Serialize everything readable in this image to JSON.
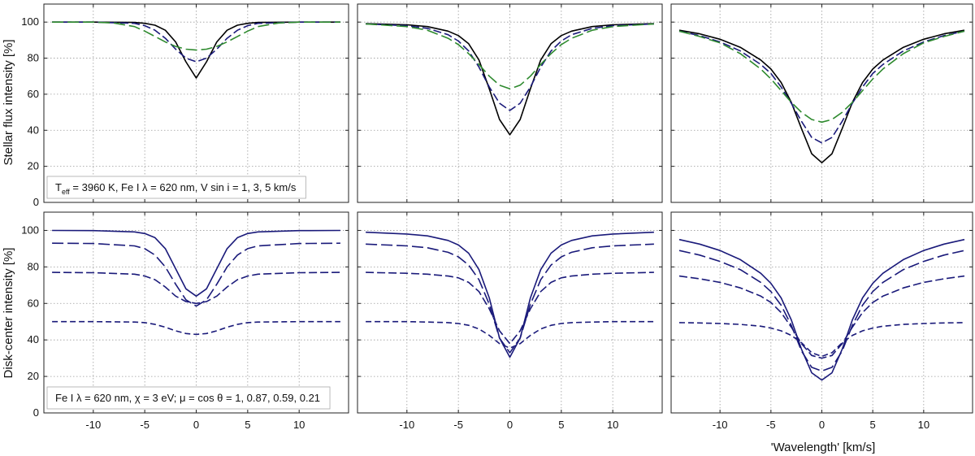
{
  "colors": {
    "black": "#000000",
    "navy": "#1a1a7a",
    "green": "#2e8a2e"
  },
  "y_axis_labels": [
    "Stellar flux intensity [%]",
    "Disk-center intensity [%]"
  ],
  "x_axis_label": "'Wavelength'  [km/s]",
  "annotations": {
    "top": "Teff = 3960 K,  Fe I  λ = 620 nm,  V sin i = 1, 3, 5 km/s",
    "bottom": "Fe I  λ = 620 nm,  χ = 3 eV;  μ = cos θ = 1, 0.87, 0.59, 0.21"
  },
  "chart_data": [
    {
      "type": "line",
      "panel": "top-left",
      "ylabel": "Stellar flux intensity [%]",
      "xlim": [
        -14.8,
        14.8
      ],
      "ylim": [
        0,
        110
      ],
      "grid": true,
      "x_ticks": [
        -10,
        -5,
        0,
        5,
        10
      ],
      "y_ticks": [
        0,
        20,
        40,
        60,
        80,
        100
      ],
      "annotation": "Teff = 3960 K,  Fe I  λ = 620 nm,  V sin i = 1, 3, 5 km/s",
      "series": [
        {
          "style": "solid",
          "color": "#000000",
          "x": [
            -14,
            -10,
            -6,
            -5,
            -4,
            -3,
            -2,
            -1,
            0,
            1,
            2,
            3,
            4,
            5,
            6,
            10,
            14
          ],
          "y": [
            100,
            100,
            99.8,
            99.3,
            98.3,
            95.5,
            89,
            78,
            69,
            78,
            89,
            95.5,
            98.3,
            99.3,
            99.8,
            100,
            100
          ]
        },
        {
          "style": "dash",
          "color": "#1a1a7a",
          "x": [
            -14,
            -10,
            -6,
            -5,
            -4,
            -3,
            -2,
            -1,
            0,
            1,
            2,
            3,
            4,
            5,
            6,
            10,
            14
          ],
          "y": [
            100,
            100,
            99.3,
            98,
            95.5,
            91,
            85,
            80,
            78,
            80,
            85,
            91,
            95.5,
            98,
            99.3,
            100,
            100
          ]
        },
        {
          "style": "longdash",
          "color": "#2e8a2e",
          "x": [
            -14,
            -10,
            -8,
            -6,
            -5,
            -4,
            -3,
            -2,
            -1,
            0,
            1,
            2,
            3,
            4,
            5,
            6,
            8,
            10,
            14
          ],
          "y": [
            100,
            100,
            99.5,
            97.5,
            95,
            92,
            89,
            86.5,
            85,
            84.5,
            85,
            86.5,
            89,
            92,
            95,
            97.5,
            99.5,
            100,
            100
          ]
        }
      ]
    },
    {
      "type": "line",
      "panel": "top-middle",
      "xlim": [
        -14.8,
        14.8
      ],
      "ylim": [
        0,
        110
      ],
      "grid": true,
      "x_ticks": [
        -10,
        -5,
        0,
        5,
        10
      ],
      "y_ticks": [
        0,
        20,
        40,
        60,
        80,
        100
      ],
      "series": [
        {
          "style": "solid",
          "color": "#000000",
          "x": [
            -14,
            -10,
            -8,
            -6,
            -5,
            -4,
            -3,
            -2,
            -1,
            0,
            1,
            2,
            3,
            4,
            5,
            6,
            8,
            10,
            14
          ],
          "y": [
            99.2,
            98.5,
            97.5,
            95,
            92.5,
            88,
            79,
            63,
            46,
            37.5,
            46,
            63,
            79,
            88,
            92.5,
            95,
            97.5,
            98.5,
            99.2
          ]
        },
        {
          "style": "dash",
          "color": "#1a1a7a",
          "x": [
            -14,
            -10,
            -8,
            -6,
            -5,
            -4,
            -3,
            -2,
            -1,
            0,
            1,
            2,
            3,
            4,
            5,
            6,
            8,
            10,
            14
          ],
          "y": [
            99,
            98,
            96.5,
            93,
            89.5,
            84,
            75,
            64,
            55,
            51,
            55,
            64,
            75,
            84,
            89.5,
            93,
            96.5,
            98,
            99
          ]
        },
        {
          "style": "longdash",
          "color": "#2e8a2e",
          "x": [
            -14,
            -10,
            -8,
            -6,
            -5,
            -4,
            -3,
            -2,
            -1,
            0,
            1,
            2,
            3,
            4,
            5,
            6,
            8,
            10,
            14
          ],
          "y": [
            99,
            97.5,
            95.5,
            91,
            87.5,
            82.5,
            76.5,
            70,
            65,
            63,
            65,
            70,
            76.5,
            82.5,
            87.5,
            91,
            95.5,
            97.5,
            99
          ]
        }
      ]
    },
    {
      "type": "line",
      "panel": "top-right",
      "xlim": [
        -14.8,
        14.8
      ],
      "ylim": [
        0,
        110
      ],
      "grid": true,
      "x_ticks": [
        -10,
        -5,
        0,
        5,
        10
      ],
      "y_ticks": [
        0,
        20,
        40,
        60,
        80,
        100
      ],
      "series": [
        {
          "style": "solid",
          "color": "#000000",
          "x": [
            -14,
            -12,
            -10,
            -8,
            -6,
            -5,
            -4,
            -3,
            -2,
            -1,
            0,
            1,
            2,
            3,
            4,
            5,
            6,
            8,
            10,
            12,
            14
          ],
          "y": [
            95.5,
            93.5,
            90.5,
            86,
            79,
            74,
            66.5,
            55.5,
            41,
            27,
            22,
            27,
            41,
            55.5,
            66.5,
            74,
            79,
            86,
            90.5,
            93.5,
            95.5
          ]
        },
        {
          "style": "dash",
          "color": "#1a1a7a",
          "x": [
            -14,
            -12,
            -10,
            -8,
            -6,
            -5,
            -4,
            -3,
            -2,
            -1,
            0,
            1,
            2,
            3,
            4,
            5,
            6,
            8,
            10,
            12,
            14
          ],
          "y": [
            95,
            92.5,
            89,
            84,
            76.5,
            71.5,
            64,
            55,
            45,
            36,
            33,
            36,
            45,
            55,
            64,
            71.5,
            76.5,
            84,
            89,
            92.5,
            95
          ]
        },
        {
          "style": "longdash",
          "color": "#2e8a2e",
          "x": [
            -14,
            -12,
            -10,
            -8,
            -6,
            -5,
            -4,
            -3,
            -2,
            -1,
            0,
            1,
            2,
            3,
            4,
            5,
            6,
            8,
            10,
            12,
            14
          ],
          "y": [
            95,
            92,
            88.5,
            82.5,
            74,
            68.5,
            62,
            55.5,
            50,
            46,
            44.5,
            46,
            50,
            55.5,
            62,
            68.5,
            74,
            82.5,
            88.5,
            92,
            95
          ]
        }
      ]
    },
    {
      "type": "line",
      "panel": "bottom-left",
      "ylabel": "Disk-center intensity [%]",
      "xlim": [
        -14.8,
        14.8
      ],
      "ylim": [
        0,
        110
      ],
      "grid": true,
      "x_ticks": [
        -10,
        -5,
        0,
        5,
        10
      ],
      "y_ticks": [
        0,
        20,
        40,
        60,
        80,
        100
      ],
      "annotation": "Fe I  λ = 620 nm,  χ = 3 eV;  μ = cos θ = 1, 0.87, 0.59, 0.21",
      "series": [
        {
          "style": "solid",
          "color": "#1a1a7a",
          "label_mu": 1,
          "x": [
            -14,
            -10,
            -6,
            -5,
            -4,
            -3,
            -2,
            -1,
            0,
            1,
            2,
            3,
            4,
            5,
            6,
            10,
            14
          ],
          "y": [
            100,
            99.9,
            99.2,
            98.3,
            96,
            90,
            79,
            68,
            64,
            68,
            79,
            90,
            96,
            98.3,
            99.2,
            99.9,
            100
          ]
        },
        {
          "style": "longdash",
          "color": "#1a1a7a",
          "label_mu": 0.87,
          "x": [
            -14,
            -10,
            -6,
            -5,
            -4,
            -3,
            -2,
            -1,
            0,
            1,
            2,
            3,
            4,
            5,
            6,
            10,
            14
          ],
          "y": [
            93,
            92.8,
            91.5,
            90,
            86.5,
            80,
            70.5,
            62,
            58.5,
            62,
            70.5,
            80,
            86.5,
            90,
            91.5,
            92.8,
            93
          ]
        },
        {
          "style": "dash",
          "color": "#1a1a7a",
          "label_mu": 0.59,
          "x": [
            -14,
            -10,
            -6,
            -5,
            -4,
            -3,
            -2,
            -1,
            0,
            1,
            2,
            3,
            4,
            5,
            6,
            10,
            14
          ],
          "y": [
            77,
            76.8,
            76,
            75,
            73,
            69,
            64,
            61,
            60,
            61,
            64,
            69,
            73,
            75,
            76,
            76.8,
            77
          ]
        },
        {
          "style": "shortdash",
          "color": "#1a1a7a",
          "label_mu": 0.21,
          "x": [
            -14,
            -10,
            -6,
            -5,
            -4,
            -3,
            -2,
            -1,
            0,
            1,
            2,
            3,
            4,
            5,
            6,
            10,
            14
          ],
          "y": [
            50,
            50,
            49.8,
            49.5,
            48.5,
            47,
            45,
            43.5,
            43,
            43.5,
            45,
            47,
            48.5,
            49.5,
            49.8,
            50,
            50
          ]
        }
      ]
    },
    {
      "type": "line",
      "panel": "bottom-middle",
      "xlim": [
        -14.8,
        14.8
      ],
      "ylim": [
        0,
        110
      ],
      "grid": true,
      "x_ticks": [
        -10,
        -5,
        0,
        5,
        10
      ],
      "y_ticks": [
        0,
        20,
        40,
        60,
        80,
        100
      ],
      "series": [
        {
          "style": "solid",
          "color": "#1a1a7a",
          "label_mu": 1,
          "x": [
            -14,
            -10,
            -8,
            -6,
            -5,
            -4,
            -3,
            -2,
            -1,
            0,
            1,
            2,
            3,
            4,
            5,
            6,
            8,
            10,
            14
          ],
          "y": [
            99,
            98,
            97,
            94.5,
            92,
            87.5,
            78.5,
            63,
            41,
            30.5,
            41,
            63,
            78.5,
            87.5,
            92,
            94.5,
            97,
            98,
            99
          ]
        },
        {
          "style": "longdash",
          "color": "#1a1a7a",
          "label_mu": 0.87,
          "x": [
            -14,
            -10,
            -8,
            -6,
            -5,
            -4,
            -3,
            -2,
            -1,
            0,
            1,
            2,
            3,
            4,
            5,
            6,
            8,
            10,
            14
          ],
          "y": [
            92.5,
            91.5,
            90.5,
            88,
            85.5,
            81,
            73,
            59.5,
            41,
            33,
            41,
            59.5,
            73,
            81,
            85.5,
            88,
            90.5,
            91.5,
            92.5
          ]
        },
        {
          "style": "dash",
          "color": "#1a1a7a",
          "label_mu": 0.59,
          "x": [
            -14,
            -10,
            -8,
            -6,
            -5,
            -4,
            -3,
            -2,
            -1,
            0,
            1,
            2,
            3,
            4,
            5,
            6,
            8,
            10,
            14
          ],
          "y": [
            77,
            76.5,
            76,
            75,
            74,
            71.5,
            66.5,
            57,
            45,
            38,
            45,
            57,
            66.5,
            71.5,
            74,
            75,
            76,
            76.5,
            77
          ]
        },
        {
          "style": "shortdash",
          "color": "#1a1a7a",
          "label_mu": 0.21,
          "x": [
            -14,
            -10,
            -8,
            -6,
            -5,
            -4,
            -3,
            -2,
            -1,
            0,
            1,
            2,
            3,
            4,
            5,
            6,
            8,
            10,
            14
          ],
          "y": [
            50,
            50,
            49.8,
            49.5,
            49,
            48,
            46,
            42.5,
            38,
            35.5,
            38,
            42.5,
            46,
            48,
            49,
            49.5,
            49.8,
            50,
            50
          ]
        }
      ]
    },
    {
      "type": "line",
      "panel": "bottom-right",
      "xlabel": "'Wavelength'  [km/s]",
      "xlim": [
        -14.8,
        14.8
      ],
      "ylim": [
        0,
        110
      ],
      "grid": true,
      "x_ticks": [
        -10,
        -5,
        0,
        5,
        10
      ],
      "y_ticks": [
        0,
        20,
        40,
        60,
        80,
        100
      ],
      "series": [
        {
          "style": "solid",
          "color": "#1a1a7a",
          "label_mu": 1,
          "x": [
            -14,
            -12,
            -10,
            -8,
            -6,
            -5,
            -4,
            -3,
            -2,
            -1,
            0,
            1,
            2,
            3,
            4,
            5,
            6,
            8,
            10,
            12,
            14
          ],
          "y": [
            95,
            92.5,
            89,
            84,
            76.5,
            71,
            63,
            51,
            35,
            22,
            18,
            22,
            35,
            51,
            63,
            71,
            76.5,
            84,
            89,
            92.5,
            95
          ]
        },
        {
          "style": "longdash",
          "color": "#1a1a7a",
          "label_mu": 0.87,
          "x": [
            -14,
            -12,
            -10,
            -8,
            -6,
            -5,
            -4,
            -3,
            -2,
            -1,
            0,
            1,
            2,
            3,
            4,
            5,
            6,
            8,
            10,
            12,
            14
          ],
          "y": [
            89,
            86.5,
            83,
            78.5,
            71.5,
            66.5,
            59,
            48,
            34,
            25,
            23,
            25,
            34,
            48,
            59,
            66.5,
            71.5,
            78.5,
            83,
            86.5,
            89
          ]
        },
        {
          "style": "dash",
          "color": "#1a1a7a",
          "label_mu": 0.59,
          "x": [
            -14,
            -12,
            -10,
            -8,
            -6,
            -5,
            -4,
            -3,
            -2,
            -1,
            0,
            1,
            2,
            3,
            4,
            5,
            6,
            8,
            10,
            12,
            14
          ],
          "y": [
            75,
            73.5,
            71.5,
            68.5,
            64,
            60.5,
            55,
            47,
            38,
            31.5,
            30,
            31.5,
            38,
            47,
            55,
            60.5,
            64,
            68.5,
            71.5,
            73.5,
            75
          ]
        },
        {
          "style": "shortdash",
          "color": "#1a1a7a",
          "label_mu": 0.21,
          "x": [
            -14,
            -12,
            -10,
            -8,
            -6,
            -5,
            -4,
            -3,
            -2,
            -1,
            0,
            1,
            2,
            3,
            4,
            5,
            6,
            8,
            10,
            12,
            14
          ],
          "y": [
            49.5,
            49.3,
            49,
            48.5,
            47.5,
            46.5,
            45,
            42.5,
            38.5,
            33,
            31,
            33,
            38.5,
            42.5,
            45,
            46.5,
            47.5,
            48.5,
            49,
            49.3,
            49.5
          ]
        }
      ]
    }
  ]
}
